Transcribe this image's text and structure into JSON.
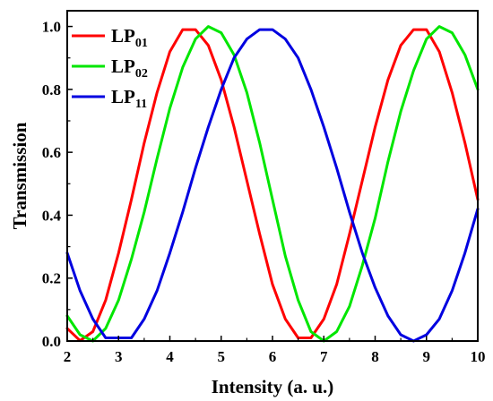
{
  "chart_data": {
    "type": "line",
    "xlabel": "Intensity (a. u.)",
    "ylabel": "Transmission",
    "xlim": [
      2,
      10
    ],
    "ylim": [
      0,
      1.05
    ],
    "xticks": [
      "2",
      "3",
      "4",
      "5",
      "6",
      "7",
      "8",
      "9",
      "10"
    ],
    "yticks": [
      "0.0",
      "0.2",
      "0.4",
      "0.6",
      "0.8",
      "1.0"
    ],
    "legend_position": "top-left",
    "grid": false,
    "series": [
      {
        "name": "LP01",
        "name_main": "LP",
        "name_sub": "01",
        "color": "#ff0000",
        "x": [
          2.0,
          2.25,
          2.5,
          2.75,
          3.0,
          3.25,
          3.5,
          3.75,
          4.0,
          4.25,
          4.5,
          4.75,
          5.0,
          5.25,
          5.5,
          5.75,
          6.0,
          6.25,
          6.5,
          6.75,
          7.0,
          7.25,
          7.5,
          7.75,
          8.0,
          8.25,
          8.5,
          8.75,
          9.0,
          9.25,
          9.5,
          9.75,
          10.0
        ],
        "y": [
          0.04,
          0.001,
          0.03,
          0.13,
          0.28,
          0.45,
          0.63,
          0.79,
          0.92,
          0.99,
          0.99,
          0.94,
          0.83,
          0.68,
          0.51,
          0.34,
          0.18,
          0.07,
          0.01,
          0.01,
          0.07,
          0.18,
          0.34,
          0.51,
          0.68,
          0.83,
          0.94,
          0.99,
          0.99,
          0.92,
          0.79,
          0.63,
          0.45
        ]
      },
      {
        "name": "LP02",
        "name_main": "LP",
        "name_sub": "02",
        "color": "#00e600",
        "x": [
          2.0,
          2.25,
          2.5,
          2.75,
          3.0,
          3.25,
          3.5,
          3.75,
          4.0,
          4.25,
          4.5,
          4.75,
          5.0,
          5.25,
          5.5,
          5.75,
          6.0,
          6.25,
          6.5,
          6.75,
          7.0,
          7.25,
          7.5,
          7.75,
          8.0,
          8.25,
          8.5,
          8.75,
          9.0,
          9.25,
          9.5,
          9.75,
          10.0
        ],
        "y": [
          0.08,
          0.02,
          0.0,
          0.04,
          0.13,
          0.26,
          0.41,
          0.58,
          0.74,
          0.87,
          0.96,
          1.0,
          0.98,
          0.91,
          0.79,
          0.63,
          0.45,
          0.27,
          0.13,
          0.03,
          0.0,
          0.03,
          0.11,
          0.24,
          0.39,
          0.57,
          0.73,
          0.86,
          0.96,
          1.0,
          0.98,
          0.91,
          0.8
        ]
      },
      {
        "name": "LP11",
        "name_main": "LP",
        "name_sub": "11",
        "color": "#0000e0",
        "x": [
          2.0,
          2.25,
          2.5,
          2.75,
          3.0,
          3.25,
          3.5,
          3.75,
          4.0,
          4.25,
          4.5,
          4.75,
          5.0,
          5.25,
          5.5,
          5.75,
          6.0,
          6.25,
          6.5,
          6.75,
          7.0,
          7.25,
          7.5,
          7.75,
          8.0,
          8.25,
          8.5,
          8.75,
          9.0,
          9.25,
          9.5,
          9.75,
          10.0
        ],
        "y": [
          0.28,
          0.16,
          0.07,
          0.01,
          0.01,
          0.01,
          0.07,
          0.16,
          0.28,
          0.41,
          0.55,
          0.68,
          0.8,
          0.9,
          0.96,
          0.99,
          0.99,
          0.96,
          0.9,
          0.8,
          0.68,
          0.55,
          0.41,
          0.28,
          0.17,
          0.08,
          0.02,
          0.0,
          0.02,
          0.07,
          0.16,
          0.28,
          0.42
        ]
      }
    ]
  }
}
